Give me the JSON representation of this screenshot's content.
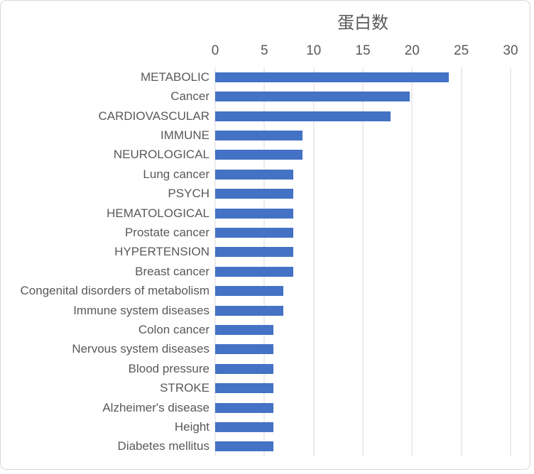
{
  "frame": {
    "background": "#FFFFFF",
    "border_color": "#D9D9D9"
  },
  "chart_data": {
    "type": "bar",
    "orientation": "horizontal",
    "title": "蛋白数",
    "xlabel": "",
    "ylabel": "",
    "legend": "none",
    "grid": "vertical-major",
    "xlim": [
      0,
      30
    ],
    "xticks": [
      0,
      5,
      10,
      15,
      20,
      25,
      30
    ],
    "categories": [
      "METABOLIC",
      "Cancer",
      "CARDIOVASCULAR",
      "IMMUNE",
      "NEUROLOGICAL",
      "Lung cancer",
      "PSYCH",
      "HEMATOLOGICAL",
      "Prostate cancer",
      "HYPERTENSION",
      "Breast cancer",
      "Congenital disorders of metabolism",
      "Immune system diseases",
      "Colon cancer",
      "Nervous system diseases",
      "Blood pressure",
      "STROKE",
      "Alzheimer's disease",
      "Height",
      "Diabetes mellitus"
    ],
    "values": [
      24,
      20,
      18,
      9,
      9,
      8,
      8,
      8,
      8,
      8,
      8,
      7,
      7,
      6,
      6,
      6,
      6,
      6,
      6,
      6
    ],
    "bar_color": "#4472C4",
    "gridline_color": "#D9D9D9",
    "axis_line_color": "#D9D9D9",
    "text_color": "#595959"
  }
}
